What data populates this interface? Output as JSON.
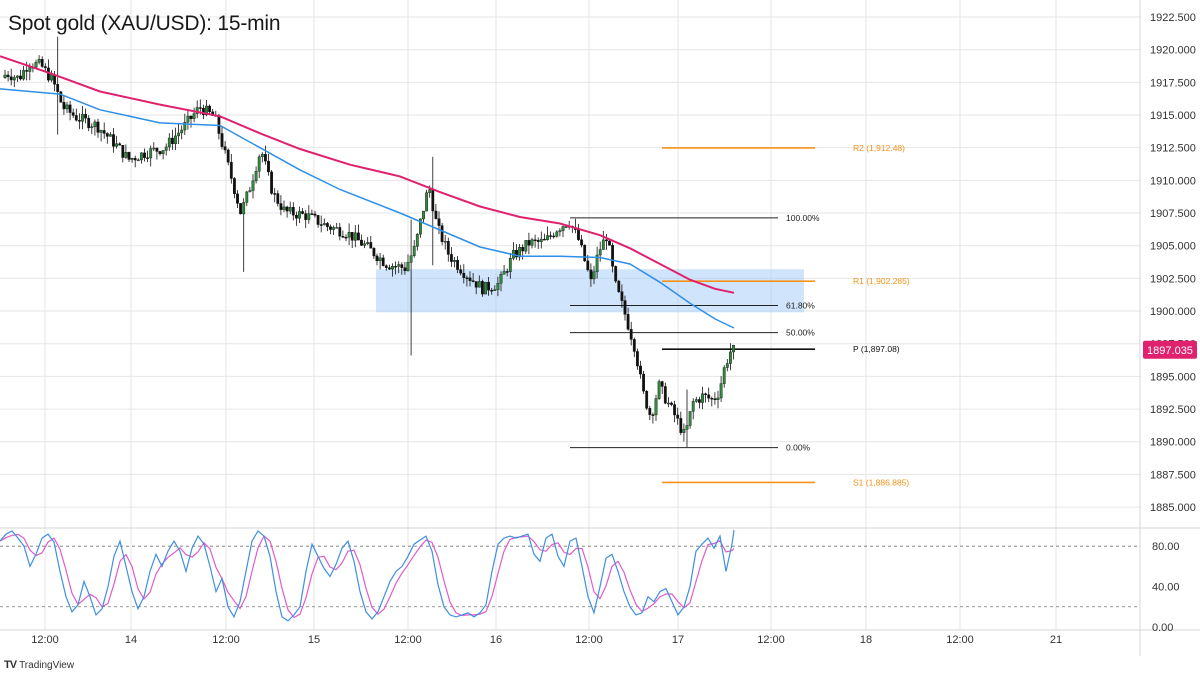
{
  "title": "Spot gold (XAU/USD): 15-min",
  "brand": "TradingView",
  "brand_icon": "tradingview-logo-icon",
  "colors": {
    "candle_up": "#2e8b3a",
    "candle_down": "#111111",
    "ema_fast": "#2e8fe8",
    "ema_slow": "#e0226e",
    "pivot_orange": "#f7931a",
    "zone_fill": "#a9cdf7",
    "price_tag": "#e0226e",
    "grid": "#e6e6e6",
    "stoch_k": "#3f8fe0",
    "stoch_d": "#e05cc8"
  },
  "chart_data": {
    "type": "candlestick",
    "title": "Spot gold (XAU/USD): 15-min",
    "ylim": [
      1883.4,
      1923.8
    ],
    "y_ticks": [
      "1922.500",
      "1920.000",
      "1917.500",
      "1915.000",
      "1912.500",
      "1910.000",
      "1907.500",
      "1905.000",
      "1902.500",
      "1900.000",
      "1897.500",
      "1895.000",
      "1892.500",
      "1890.000",
      "1887.500",
      "1885.000"
    ],
    "x_ticks": [
      "12:00",
      "14",
      "12:00",
      "15",
      "12:00",
      "16",
      "12:00",
      "17",
      "12:00",
      "18",
      "12:00",
      "21"
    ],
    "last_price": "1897.035",
    "price_path": [
      [
        0,
        1917.5
      ],
      [
        10,
        1918.2
      ],
      [
        22,
        1917.8
      ],
      [
        32,
        1919.0
      ],
      [
        44,
        1918.8
      ],
      [
        56,
        1917.6
      ],
      [
        66,
        1915.6
      ],
      [
        80,
        1914.8
      ],
      [
        100,
        1914.2
      ],
      [
        118,
        1912.8
      ],
      [
        132,
        1911.6
      ],
      [
        148,
        1912.1
      ],
      [
        168,
        1912.5
      ],
      [
        188,
        1914.2
      ],
      [
        203,
        1915.6
      ],
      [
        218,
        1914.8
      ],
      [
        232,
        1910.9
      ],
      [
        244,
        1907.5
      ],
      [
        252,
        1909.2
      ],
      [
        264,
        1912.4
      ],
      [
        276,
        1909.0
      ],
      [
        288,
        1907.6
      ],
      [
        310,
        1907.3
      ],
      [
        330,
        1906.5
      ],
      [
        350,
        1906.0
      ],
      [
        370,
        1904.9
      ],
      [
        390,
        1903.6
      ],
      [
        408,
        1903.3
      ],
      [
        418,
        1904.8
      ],
      [
        424,
        1907.0
      ],
      [
        432,
        1909.6
      ],
      [
        440,
        1906.5
      ],
      [
        452,
        1904.3
      ],
      [
        468,
        1902.9
      ],
      [
        486,
        1901.7
      ],
      [
        502,
        1902.1
      ],
      [
        516,
        1904.2
      ],
      [
        532,
        1905.2
      ],
      [
        548,
        1905.3
      ],
      [
        560,
        1906.3
      ],
      [
        572,
        1906.9
      ],
      [
        582,
        1905.4
      ],
      [
        594,
        1902.2
      ],
      [
        602,
        1904.6
      ],
      [
        610,
        1905.8
      ],
      [
        618,
        1902.1
      ],
      [
        628,
        1899.8
      ],
      [
        638,
        1897.2
      ],
      [
        646,
        1893.8
      ],
      [
        654,
        1891.9
      ],
      [
        662,
        1894.3
      ],
      [
        670,
        1893.1
      ],
      [
        678,
        1892.0
      ],
      [
        688,
        1890.4
      ],
      [
        696,
        1893.0
      ],
      [
        706,
        1893.5
      ],
      [
        716,
        1893.2
      ],
      [
        722,
        1893.8
      ],
      [
        728,
        1895.8
      ],
      [
        734,
        1897.0
      ]
    ],
    "ema_fast": [
      [
        0,
        1917.0
      ],
      [
        60,
        1916.6
      ],
      [
        100,
        1915.4
      ],
      [
        160,
        1914.4
      ],
      [
        220,
        1914.2
      ],
      [
        260,
        1912.5
      ],
      [
        300,
        1910.8
      ],
      [
        340,
        1909.3
      ],
      [
        400,
        1907.5
      ],
      [
        440,
        1906.2
      ],
      [
        480,
        1904.9
      ],
      [
        520,
        1904.2
      ],
      [
        560,
        1904.2
      ],
      [
        600,
        1904.1
      ],
      [
        630,
        1903.6
      ],
      [
        660,
        1902.2
      ],
      [
        690,
        1900.6
      ],
      [
        715,
        1899.4
      ],
      [
        734,
        1898.7
      ]
    ],
    "ema_slow": [
      [
        0,
        1919.5
      ],
      [
        50,
        1918.2
      ],
      [
        100,
        1916.8
      ],
      [
        160,
        1915.8
      ],
      [
        220,
        1914.9
      ],
      [
        260,
        1913.6
      ],
      [
        300,
        1912.4
      ],
      [
        350,
        1911.2
      ],
      [
        400,
        1910.3
      ],
      [
        440,
        1909.1
      ],
      [
        480,
        1908.0
      ],
      [
        520,
        1907.2
      ],
      [
        560,
        1906.7
      ],
      [
        600,
        1905.8
      ],
      [
        630,
        1904.8
      ],
      [
        660,
        1903.6
      ],
      [
        690,
        1902.4
      ],
      [
        715,
        1901.7
      ],
      [
        734,
        1901.4
      ]
    ],
    "levels": [
      {
        "label": "R2 (1,912.48)",
        "value": 1912.48,
        "kind": "pivot"
      },
      {
        "label": "R1 (1,902.285)",
        "value": 1902.285,
        "kind": "pivot"
      },
      {
        "label": "P (1,897.08)",
        "value": 1897.08,
        "kind": "pivot-main"
      },
      {
        "label": "S1 (1,886.885)",
        "value": 1886.885,
        "kind": "pivot"
      }
    ],
    "fib": [
      {
        "label": "100.00%",
        "value": 1907.13
      },
      {
        "label": "61.80%",
        "value": 1900.42
      },
      {
        "label": "50.00%",
        "value": 1898.35
      },
      {
        "label": "0.00%",
        "value": 1889.55
      }
    ],
    "zone": {
      "from": 1903.2,
      "to": 1899.9
    },
    "stochastic": {
      "y_ticks": [
        "80.00",
        "40.00",
        "0.00"
      ],
      "overbought": 80,
      "oversold": 20,
      "ylim": [
        -3,
        98
      ],
      "k": [
        [
          0,
          85
        ],
        [
          6,
          92
        ],
        [
          12,
          95
        ],
        [
          18,
          88
        ],
        [
          24,
          80
        ],
        [
          30,
          60
        ],
        [
          36,
          72
        ],
        [
          42,
          88
        ],
        [
          48,
          92
        ],
        [
          54,
          84
        ],
        [
          60,
          55
        ],
        [
          66,
          30
        ],
        [
          72,
          15
        ],
        [
          78,
          22
        ],
        [
          84,
          45
        ],
        [
          90,
          30
        ],
        [
          96,
          12
        ],
        [
          102,
          18
        ],
        [
          108,
          40
        ],
        [
          114,
          70
        ],
        [
          120,
          85
        ],
        [
          126,
          60
        ],
        [
          132,
          35
        ],
        [
          138,
          18
        ],
        [
          144,
          30
        ],
        [
          150,
          55
        ],
        [
          156,
          72
        ],
        [
          162,
          60
        ],
        [
          168,
          75
        ],
        [
          174,
          85
        ],
        [
          180,
          75
        ],
        [
          186,
          55
        ],
        [
          192,
          78
        ],
        [
          198,
          90
        ],
        [
          204,
          82
        ],
        [
          210,
          60
        ],
        [
          216,
          35
        ],
        [
          222,
          48
        ],
        [
          228,
          20
        ],
        [
          234,
          10
        ],
        [
          240,
          25
        ],
        [
          246,
          55
        ],
        [
          252,
          85
        ],
        [
          258,
          95
        ],
        [
          264,
          90
        ],
        [
          270,
          70
        ],
        [
          276,
          35
        ],
        [
          282,
          10
        ],
        [
          288,
          6
        ],
        [
          294,
          12
        ],
        [
          300,
          20
        ],
        [
          306,
          55
        ],
        [
          312,
          82
        ],
        [
          318,
          70
        ],
        [
          324,
          58
        ],
        [
          330,
          50
        ],
        [
          336,
          62
        ],
        [
          342,
          78
        ],
        [
          348,
          85
        ],
        [
          354,
          65
        ],
        [
          360,
          35
        ],
        [
          366,
          15
        ],
        [
          372,
          8
        ],
        [
          378,
          15
        ],
        [
          384,
          30
        ],
        [
          390,
          45
        ],
        [
          396,
          55
        ],
        [
          402,
          60
        ],
        [
          408,
          70
        ],
        [
          414,
          82
        ],
        [
          420,
          86
        ],
        [
          426,
          90
        ],
        [
          432,
          75
        ],
        [
          438,
          42
        ],
        [
          444,
          20
        ],
        [
          450,
          12
        ],
        [
          456,
          10
        ],
        [
          462,
          12
        ],
        [
          468,
          14
        ],
        [
          474,
          10
        ],
        [
          480,
          14
        ],
        [
          486,
          22
        ],
        [
          492,
          55
        ],
        [
          498,
          82
        ],
        [
          504,
          88
        ],
        [
          510,
          90
        ],
        [
          516,
          88
        ],
        [
          522,
          90
        ],
        [
          528,
          92
        ],
        [
          534,
          72
        ],
        [
          540,
          65
        ],
        [
          546,
          88
        ],
        [
          552,
          92
        ],
        [
          558,
          70
        ],
        [
          564,
          60
        ],
        [
          570,
          85
        ],
        [
          576,
          88
        ],
        [
          582,
          60
        ],
        [
          588,
          30
        ],
        [
          594,
          14
        ],
        [
          600,
          40
        ],
        [
          606,
          68
        ],
        [
          612,
          72
        ],
        [
          618,
          55
        ],
        [
          624,
          35
        ],
        [
          630,
          20
        ],
        [
          636,
          12
        ],
        [
          642,
          14
        ],
        [
          648,
          30
        ],
        [
          654,
          25
        ],
        [
          660,
          35
        ],
        [
          666,
          38
        ],
        [
          672,
          25
        ],
        [
          678,
          12
        ],
        [
          684,
          20
        ],
        [
          690,
          40
        ],
        [
          696,
          75
        ],
        [
          702,
          82
        ],
        [
          708,
          88
        ],
        [
          714,
          78
        ],
        [
          720,
          90
        ],
        [
          726,
          55
        ],
        [
          732,
          82
        ],
        [
          734,
          96
        ]
      ]
    }
  }
}
